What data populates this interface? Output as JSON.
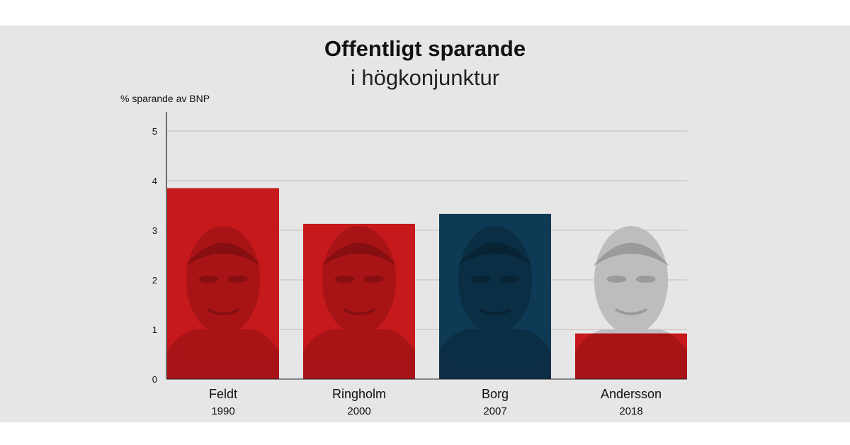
{
  "colors": {
    "red": "#c6191c",
    "blue": "#0e3a56",
    "grid": "#c9b6b6",
    "axis": "#222222"
  },
  "chart_data": {
    "type": "bar",
    "title": "Offentligt sparande",
    "subtitle": "i högkonjunktur",
    "ylabel": "% sparande av BNP",
    "xlabel": "",
    "ylim": [
      0,
      5.5
    ],
    "yticks": [
      "0",
      "1",
      "2",
      "3",
      "4",
      "5"
    ],
    "grid": true,
    "categories": [
      {
        "name": "Feldt",
        "year": "1990",
        "value": 3.85,
        "color": "#c6191c",
        "portrait": true
      },
      {
        "name": "Ringholm",
        "year": "2000",
        "value": 3.13,
        "color": "#c6191c",
        "portrait": true
      },
      {
        "name": "Borg",
        "year": "2007",
        "value": 3.33,
        "color": "#0e3a56",
        "portrait": true
      },
      {
        "name": "Andersson",
        "year": "2018",
        "value": 0.92,
        "color": "#c6191c",
        "portrait": true
      }
    ]
  }
}
